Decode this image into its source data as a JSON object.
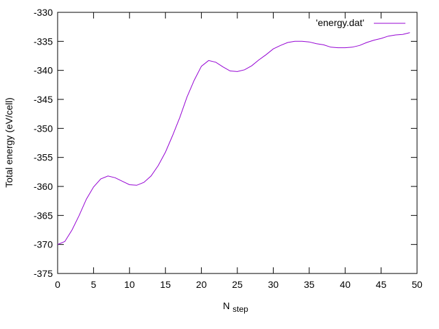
{
  "chart_data": {
    "type": "line",
    "title": "",
    "xlabel": "N",
    "xlabel_sub": "step",
    "ylabel": "Total energy (eV/cell)",
    "xlim": [
      0,
      50
    ],
    "ylim": [
      -375,
      -330
    ],
    "xticks": [
      0,
      5,
      10,
      15,
      20,
      25,
      30,
      35,
      40,
      45,
      50
    ],
    "yticks": [
      -375,
      -370,
      -365,
      -360,
      -355,
      -350,
      -345,
      -340,
      -335,
      -330
    ],
    "grid": false,
    "legend_position": "top-right",
    "series": [
      {
        "name": "'energy.dat'",
        "color": "#9400d3",
        "x": [
          0,
          1,
          2,
          3,
          4,
          5,
          6,
          7,
          8,
          9,
          10,
          11,
          12,
          13,
          14,
          15,
          16,
          17,
          18,
          19,
          20,
          21,
          22,
          23,
          24,
          25,
          26,
          27,
          28,
          29,
          30,
          31,
          32,
          33,
          34,
          35,
          36,
          37,
          38,
          39,
          40,
          41,
          42,
          43,
          44,
          45,
          46,
          47,
          48,
          49
        ],
        "y": [
          -370.0,
          -369.5,
          -367.5,
          -365.0,
          -362.2,
          -360.1,
          -358.7,
          -358.2,
          -358.5,
          -359.1,
          -359.7,
          -359.8,
          -359.3,
          -358.2,
          -356.4,
          -354.1,
          -351.2,
          -348.1,
          -344.6,
          -341.7,
          -339.3,
          -338.3,
          -338.6,
          -339.4,
          -340.1,
          -340.2,
          -339.9,
          -339.2,
          -338.2,
          -337.3,
          -336.3,
          -335.7,
          -335.2,
          -335.0,
          -335.0,
          -335.1,
          -335.4,
          -335.6,
          -336.0,
          -336.1,
          -336.1,
          -336.0,
          -335.7,
          -335.2,
          -334.8,
          -334.5,
          -334.1,
          -333.9,
          -333.8,
          -333.5
        ]
      }
    ]
  }
}
